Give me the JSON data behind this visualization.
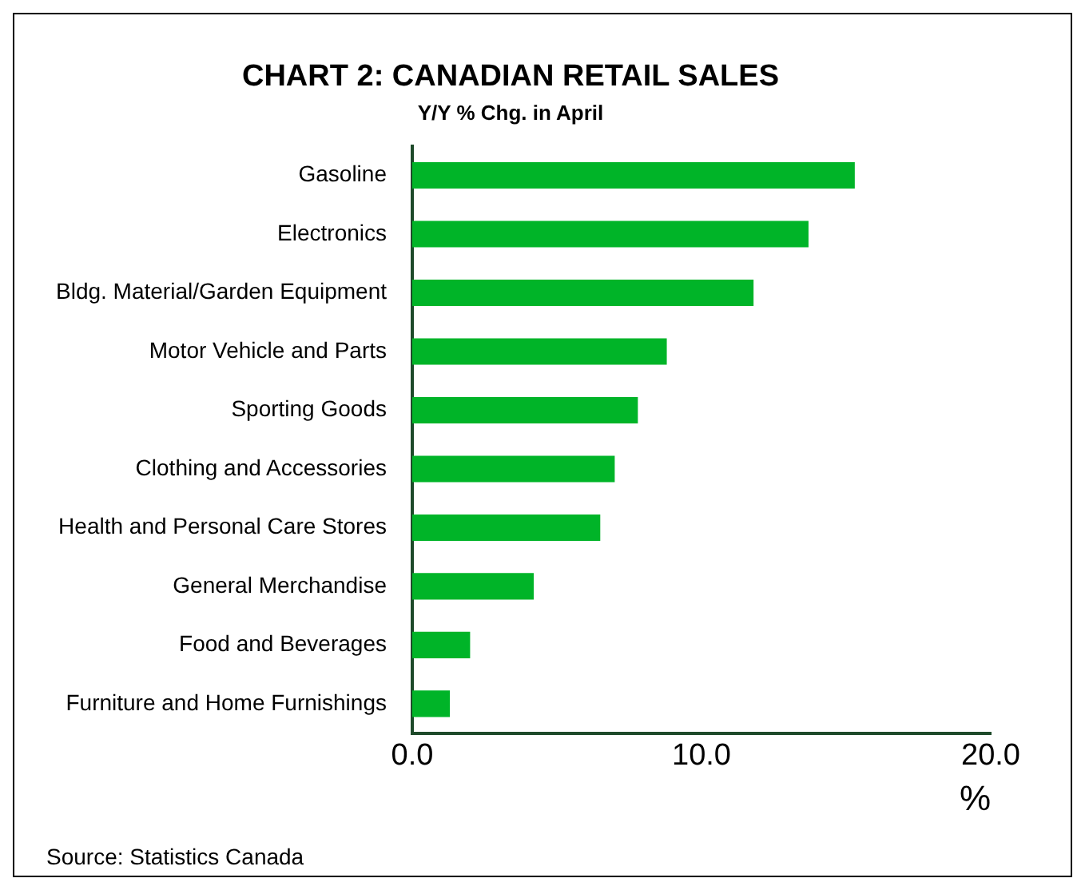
{
  "chart_data": {
    "type": "bar",
    "orientation": "horizontal",
    "title": "CHART 2: CANADIAN RETAIL SALES",
    "subtitle": "Y/Y % Chg. in April",
    "xlabel": "%",
    "categories": [
      "Gasoline",
      "Electronics",
      "Bldg. Material/Garden Equipment",
      "Motor Vehicle and Parts",
      "Sporting Goods",
      "Clothing and Accessories",
      "Health and Personal Care Stores",
      "General Merchandise",
      "Food and Beverages",
      "Furniture and Home Furnishings"
    ],
    "values": [
      15.3,
      13.7,
      11.8,
      8.8,
      7.8,
      7.0,
      6.5,
      4.2,
      2.0,
      1.3
    ],
    "color": "#00b428",
    "xlim": [
      0,
      20
    ],
    "xticks": [
      {
        "value": 0,
        "label": "0.0"
      },
      {
        "value": 10,
        "label": "10.0"
      },
      {
        "value": 20,
        "label": "20.0"
      }
    ],
    "grid": false,
    "legend": false,
    "annotations": [
      "Source: Statistics Canada"
    ]
  }
}
